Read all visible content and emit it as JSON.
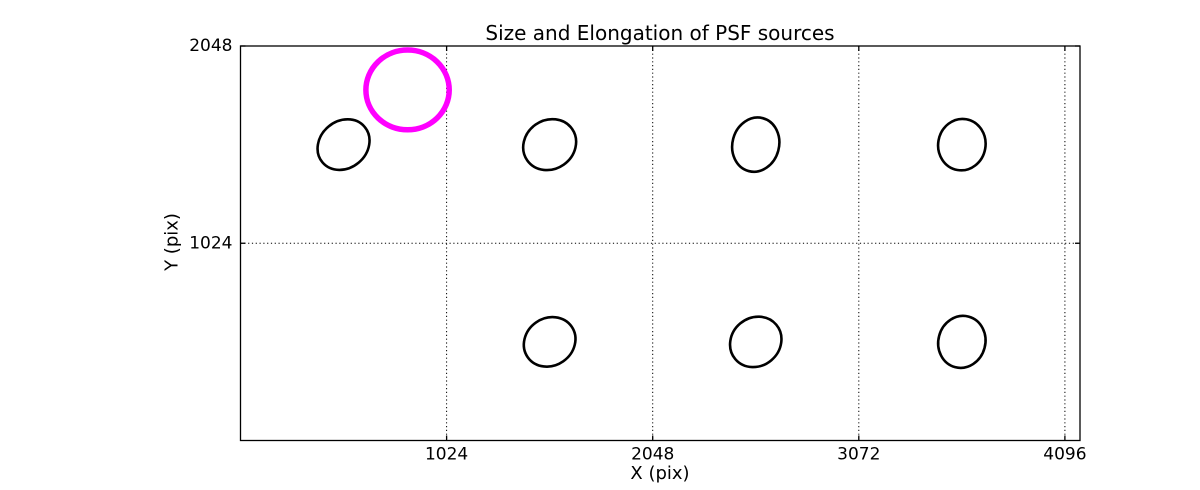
{
  "chart_data": {
    "type": "scatter",
    "title": "Size and Elongation of PSF sources",
    "xlabel": "X (pix)",
    "ylabel": "Y (pix)",
    "xlim": [
      0,
      4171
    ],
    "ylim": [
      0,
      2048
    ],
    "xticks": [
      1024,
      2048,
      3072,
      4096
    ],
    "yticks": [
      1024,
      2048
    ],
    "grid": "dotted",
    "legend": "none",
    "axis_color": "#000000",
    "background_color": "#ffffff",
    "source_color": "#000000",
    "source_stroke_px": 2.6,
    "sources": [
      {
        "x": 512,
        "y": 1536,
        "a": 137,
        "b": 122,
        "pa_deg": 40
      },
      {
        "x": 1536,
        "y": 1536,
        "a": 136,
        "b": 127,
        "pa_deg": 35
      },
      {
        "x": 2560,
        "y": 1536,
        "a": 136,
        "b": 121,
        "pa_deg": 75
      },
      {
        "x": 3584,
        "y": 1536,
        "a": 128,
        "b": 123,
        "pa_deg": 80
      },
      {
        "x": 1536,
        "y": 512,
        "a": 133,
        "b": 123,
        "pa_deg": 35
      },
      {
        "x": 2560,
        "y": 512,
        "a": 133,
        "b": 125,
        "pa_deg": 40
      },
      {
        "x": 3584,
        "y": 512,
        "a": 130,
        "b": 122,
        "pa_deg": 75
      }
    ],
    "highlight_circle": {
      "x": 830,
      "y": 1820,
      "radius": 207,
      "color": "#ff00ff",
      "stroke_px": 5.5
    }
  }
}
